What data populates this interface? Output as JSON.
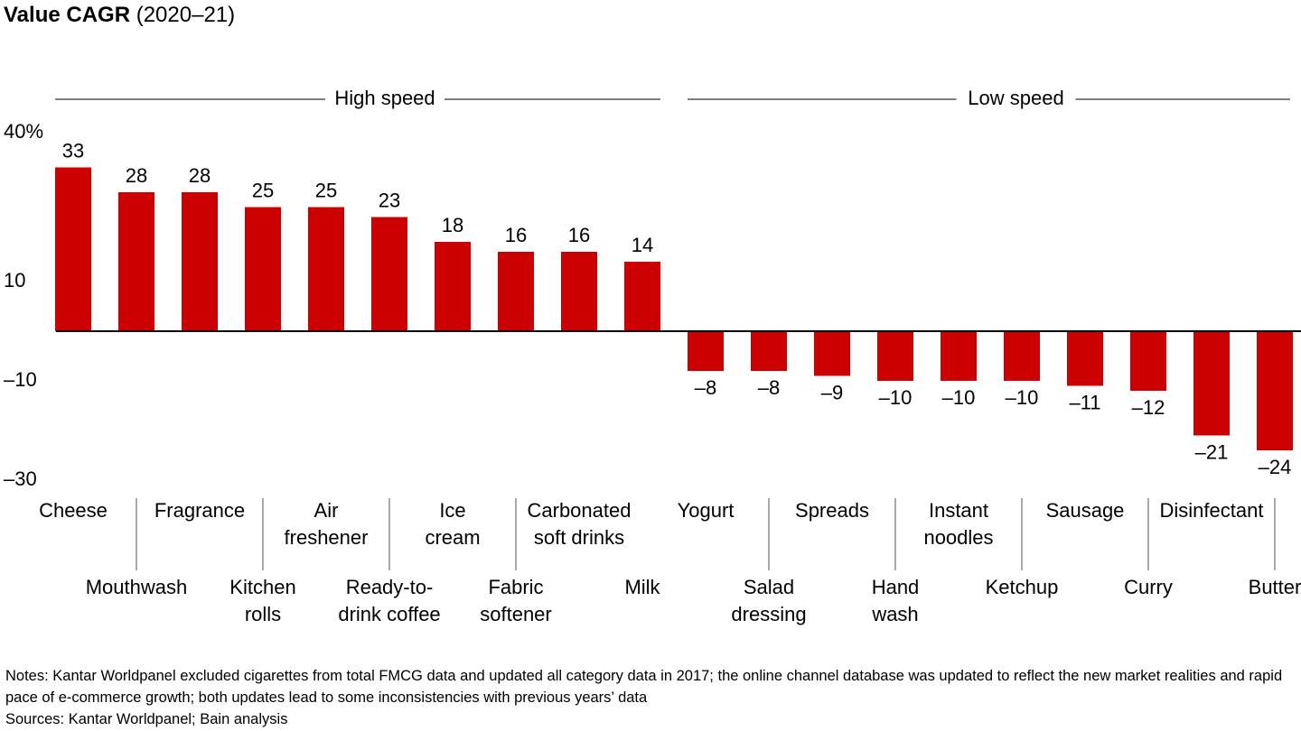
{
  "chart_data": {
    "type": "bar",
    "title": "Value CAGR",
    "subtitle": "(2020–21)",
    "groups": [
      {
        "label": "High speed"
      },
      {
        "label": "Low speed"
      }
    ],
    "categories": [
      "Cheese",
      "Mouthwash",
      "Fragrance",
      "Kitchen\nrolls",
      "Air\nfreshener",
      "Ready-to-\ndrink coffee",
      "Ice\ncream",
      "Fabric\nsoftener",
      "Carbonated\nsoft drinks",
      "Milk",
      "Yogurt",
      "Salad\ndressing",
      "Spreads",
      "Hand\nwash",
      "Instant\nnoodles",
      "Ketchup",
      "Sausage",
      "Curry",
      "Disinfectant",
      "Butter"
    ],
    "values": [
      33,
      28,
      28,
      25,
      25,
      23,
      18,
      16,
      16,
      14,
      -8,
      -8,
      -9,
      -10,
      -10,
      -10,
      -11,
      -12,
      -21,
      -24
    ],
    "value_labels": [
      "33",
      "28",
      "28",
      "25",
      "25",
      "23",
      "18",
      "16",
      "16",
      "14",
      "–8",
      "–8",
      "–9",
      "–10",
      "–10",
      "–10",
      "–11",
      "–12",
      "–21",
      "–24"
    ],
    "color": "#cc0000",
    "ylim": [
      -30,
      40
    ],
    "yticks": [
      {
        "value": 40,
        "label": "40%"
      },
      10,
      {
        "value": -10,
        "label": "–10"
      },
      {
        "value": -30,
        "label": "–30"
      }
    ],
    "grid": false,
    "notes": "Notes: Kantar Worldpanel excluded cigarettes from total FMCG data and updated all category data in 2017; the online channel database was updated to reflect the new market realities and rapid pace of e-commerce growth; both updates lead to some inconsistencies with previous years’ data",
    "sources": "Sources: Kantar Worldpanel; Bain analysis"
  }
}
